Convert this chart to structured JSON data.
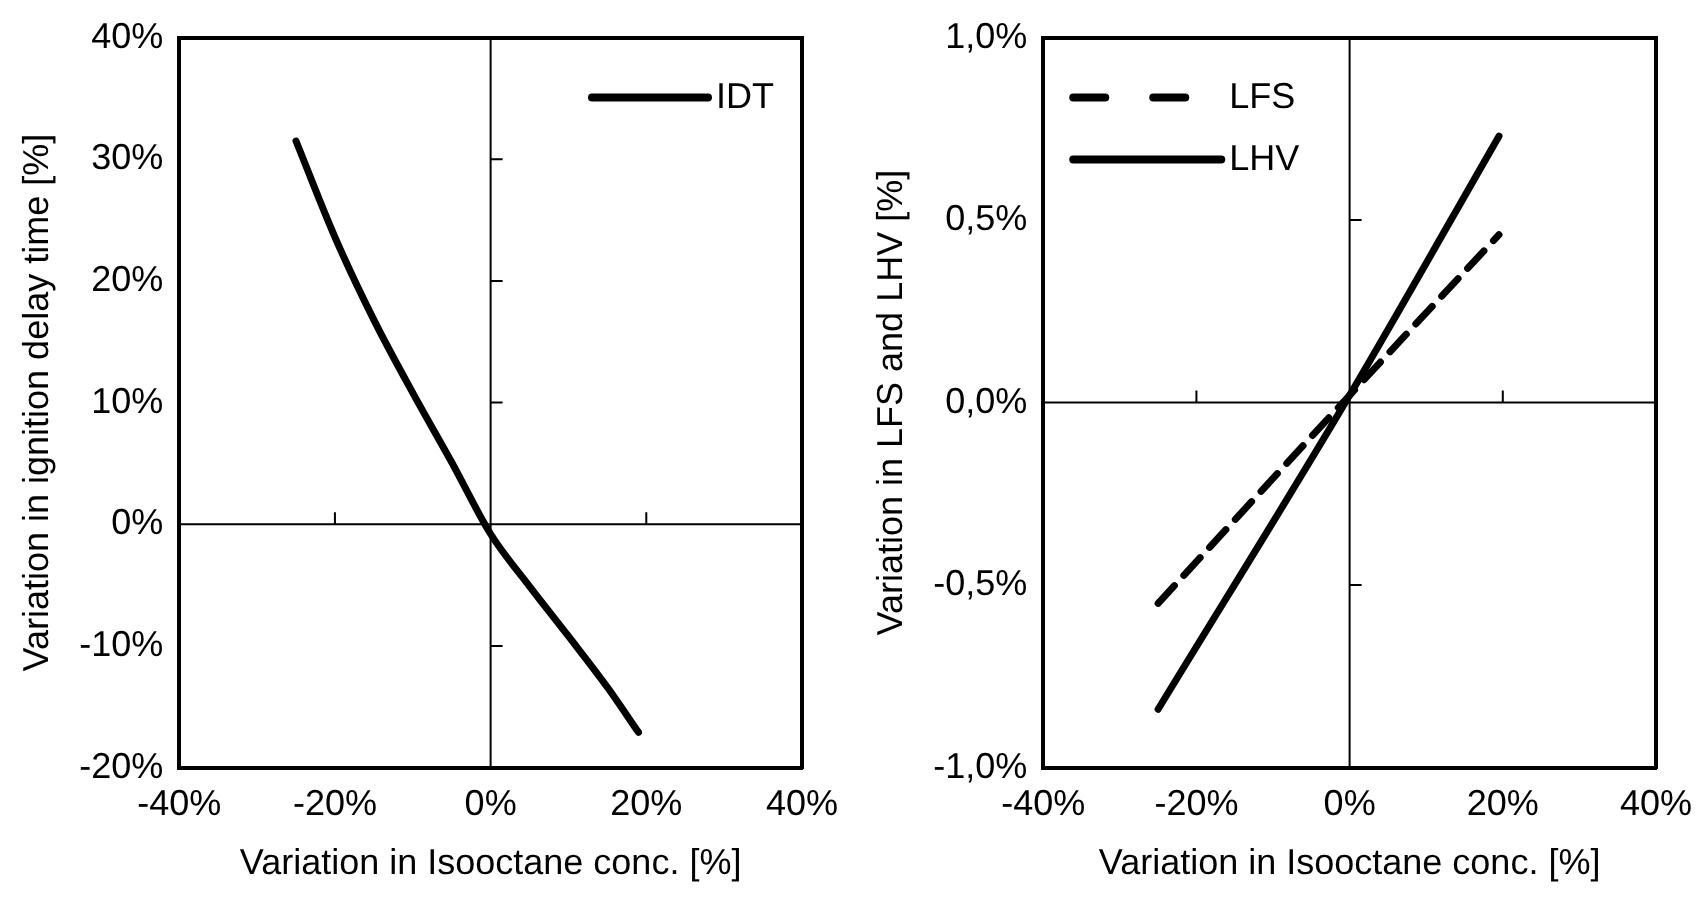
{
  "chart_data": [
    {
      "type": "line",
      "xlabel": "Variation in Isooctane conc. [%]",
      "ylabel": "Variation in ignition delay time [%]",
      "legend": "top right",
      "line_style": "solid",
      "marker": "none",
      "xlim": [
        -40,
        40
      ],
      "xticks": [
        {
          "value": -40,
          "label": "-40%"
        },
        {
          "value": -20,
          "label": "-20%"
        },
        {
          "value": 0,
          "label": "0%"
        },
        {
          "value": 20,
          "label": "20%"
        },
        {
          "value": 40,
          "label": "40%"
        }
      ],
      "ylim": [
        -20,
        40
      ],
      "yticks": [
        {
          "value": -20,
          "label": "-20%"
        },
        {
          "value": -10,
          "label": "-10%"
        },
        {
          "value": 0,
          "label": "0%"
        },
        {
          "value": 10,
          "label": "10%"
        },
        {
          "value": 20,
          "label": "20%"
        },
        {
          "value": 30,
          "label": "30%"
        },
        {
          "value": 40,
          "label": "40%"
        }
      ],
      "x": [
        -25,
        -20,
        -15,
        -10,
        -5,
        0,
        5,
        10,
        15,
        19
      ],
      "series": [
        {
          "name": "IDT",
          "color": "#000000",
          "values": [
            31.5,
            23.6,
            16.8,
            10.8,
            5.1,
            -0.8,
            -5.1,
            -9.2,
            -13.4,
            -17.1
          ]
        }
      ]
    },
    {
      "type": "line",
      "xlabel": "Variation in Isooctane conc. [%]",
      "ylabel": "Variation in LFS and LHV [%]",
      "legend": "top left",
      "marker": "none",
      "xlim": [
        -40,
        40
      ],
      "xticks": [
        {
          "value": -40,
          "label": "-40%"
        },
        {
          "value": -20,
          "label": "-20%"
        },
        {
          "value": 0,
          "label": "0%"
        },
        {
          "value": 20,
          "label": "20%"
        },
        {
          "value": 40,
          "label": "40%"
        }
      ],
      "ylim": [
        -1,
        1
      ],
      "yticks": [
        {
          "value": -1,
          "label": "-1,0%"
        },
        {
          "value": -0.5,
          "label": "-0,5%"
        },
        {
          "value": 0,
          "label": "0,0%"
        },
        {
          "value": 0.5,
          "label": "0,5%"
        },
        {
          "value": 1,
          "label": "1,0%"
        }
      ],
      "x": [
        -25,
        0,
        19.5
      ],
      "series": [
        {
          "name": "LFS",
          "color": "#000000",
          "line_style": "dashed",
          "values": [
            -0.55,
            0.02,
            0.46
          ]
        },
        {
          "name": "LHV",
          "color": "#000000",
          "line_style": "solid",
          "values": [
            -0.84,
            0.02,
            0.73
          ]
        }
      ]
    }
  ]
}
